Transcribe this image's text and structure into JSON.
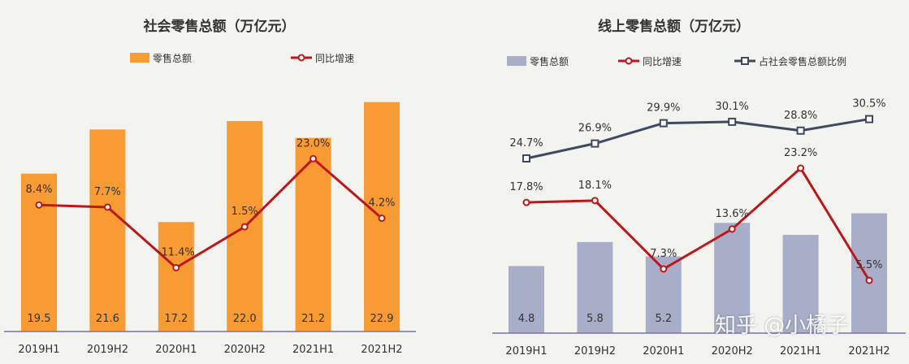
{
  "chart_data": [
    {
      "type": "bar",
      "title": "社会零售总额（万亿元）",
      "categories": [
        "2019H1",
        "2019H2",
        "2020H1",
        "2020H2",
        "2021H1",
        "2021H2"
      ],
      "series": [
        {
          "name": "零售总额",
          "type": "bar",
          "values": [
            19.5,
            21.6,
            17.2,
            22.0,
            21.2,
            22.9
          ],
          "labels": [
            "19.5",
            "21.6",
            "17.2",
            "22.0",
            "21.2",
            "22.9"
          ],
          "color": "#f99b33"
        },
        {
          "name": "同比增速",
          "type": "line",
          "values": [
            8.4,
            7.7,
            -11.4,
            1.5,
            23.0,
            4.2
          ],
          "labels": [
            "8.4%",
            "7.7%",
            "-11.4%",
            "1.5%",
            "23.0%",
            "4.2%"
          ],
          "color": "#c0161b"
        }
      ]
    },
    {
      "type": "bar",
      "title": "线上零售总额（万亿元）",
      "categories": [
        "2019H1",
        "2019H2",
        "2020H1",
        "2020H2",
        "2021H1",
        "2021H2"
      ],
      "series": [
        {
          "name": "零售总额",
          "type": "bar",
          "values": [
            4.8,
            5.8,
            5.2,
            6.6,
            6.1,
            7.0
          ],
          "labels": [
            "4.8",
            "5.8",
            "5.2",
            "",
            "",
            ""
          ],
          "color": "#a8aec7"
        },
        {
          "name": "同比增速",
          "type": "line",
          "values": [
            17.8,
            18.1,
            7.3,
            13.6,
            23.2,
            5.5
          ],
          "labels": [
            "17.8%",
            "18.1%",
            "7.3%",
            "13.6%",
            "23.2%",
            "5.5%"
          ],
          "color": "#c0161b"
        },
        {
          "name": "占社会零售总额比例",
          "type": "line",
          "values": [
            24.7,
            26.9,
            29.9,
            30.1,
            28.8,
            30.5
          ],
          "labels": [
            "24.7%",
            "26.9%",
            "29.9%",
            "30.1%",
            "28.8%",
            "30.5%"
          ],
          "color": "#3d4a60"
        }
      ]
    }
  ],
  "watermark": "知乎 @小橘子"
}
